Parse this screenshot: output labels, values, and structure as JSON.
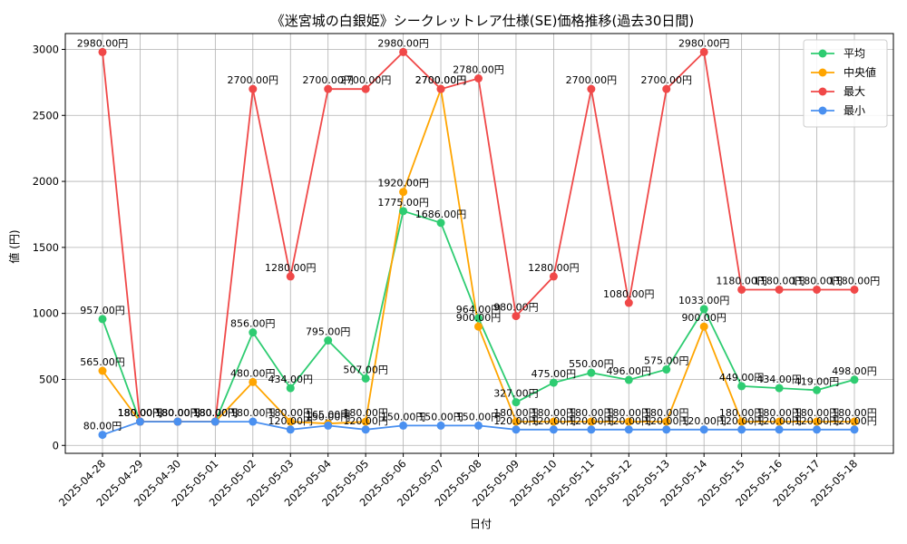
{
  "chart_data": {
    "type": "line",
    "title": "《迷宮城の白銀姫》シークレットレア仕様(SE)価格推移(過去30日間)",
    "xlabel": "日付",
    "ylabel": "値 (円)",
    "ylim": [
      -60,
      3120
    ],
    "yticks": [
      0,
      500,
      1000,
      1500,
      2000,
      2500,
      3000
    ],
    "grid": true,
    "legend_position": "top-right",
    "value_suffix": "円",
    "categories": [
      "2025-04-28",
      "2025-04-29",
      "2025-04-30",
      "2025-05-01",
      "2025-05-02",
      "2025-05-03",
      "2025-05-04",
      "2025-05-05",
      "2025-05-06",
      "2025-05-07",
      "2025-05-08",
      "2025-05-09",
      "2025-05-10",
      "2025-05-11",
      "2025-05-12",
      "2025-05-13",
      "2025-05-14",
      "2025-05-15",
      "2025-05-16",
      "2025-05-17",
      "2025-05-18"
    ],
    "series": [
      {
        "name": "平均",
        "color": "#2ecc71",
        "values": [
          957,
          180,
          180,
          180,
          856,
          434,
          795,
          507,
          1775,
          1686,
          964,
          327,
          475,
          550,
          496,
          575,
          1033,
          449,
          434,
          419,
          498
        ]
      },
      {
        "name": "中央値",
        "color": "#ffa500",
        "values": [
          565,
          180,
          180,
          180,
          480,
          180,
          165,
          180,
          1920,
          2700,
          900,
          180,
          180,
          180,
          180,
          180,
          900,
          180,
          180,
          180,
          180
        ]
      },
      {
        "name": "最大",
        "color": "#f04848",
        "values": [
          2980,
          180,
          180,
          180,
          2700,
          1280,
          2700,
          2700,
          2980,
          2700,
          2780,
          980,
          1280,
          2700,
          1080,
          2700,
          2980,
          1180,
          1180,
          1180,
          1180
        ]
      },
      {
        "name": "最小",
        "color": "#4a90f0",
        "values": [
          80,
          180,
          180,
          180,
          180,
          120,
          150,
          120,
          150,
          150,
          150,
          120,
          120,
          120,
          120,
          120,
          120,
          120,
          120,
          120,
          120
        ]
      }
    ]
  }
}
